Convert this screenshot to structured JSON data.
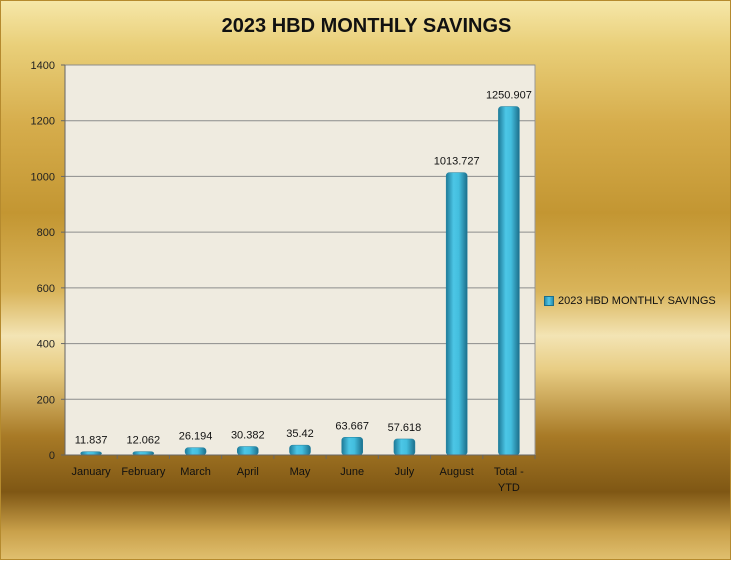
{
  "chart_data": {
    "type": "bar",
    "title": "2023 HBD MONTHLY SAVINGS",
    "categories": [
      "January",
      "February",
      "March",
      "April",
      "May",
      "June",
      "July",
      "August",
      "Total -\nYTD"
    ],
    "series": [
      {
        "name": "2023 HBD MONTHLY SAVINGS",
        "values": [
          11.837,
          12.062,
          26.194,
          30.382,
          35.42,
          63.667,
          57.618,
          1013.727,
          1250.907
        ]
      }
    ],
    "data_labels": [
      "11.837",
      "12.062",
      "26.194",
      "30.382",
      "35.42",
      "63.667",
      "57.618",
      "1013.727",
      "1250.907"
    ],
    "ylim": [
      0,
      1400
    ],
    "yticks": [
      0,
      200,
      400,
      600,
      800,
      1000,
      1200,
      1400
    ],
    "grid": true,
    "legend_position": "right",
    "colors": {
      "bar": "#3bb3d6",
      "bar_dark": "#1f7f9e",
      "plot_bg": "#efebe0",
      "grid": "#8c8c8c"
    }
  }
}
